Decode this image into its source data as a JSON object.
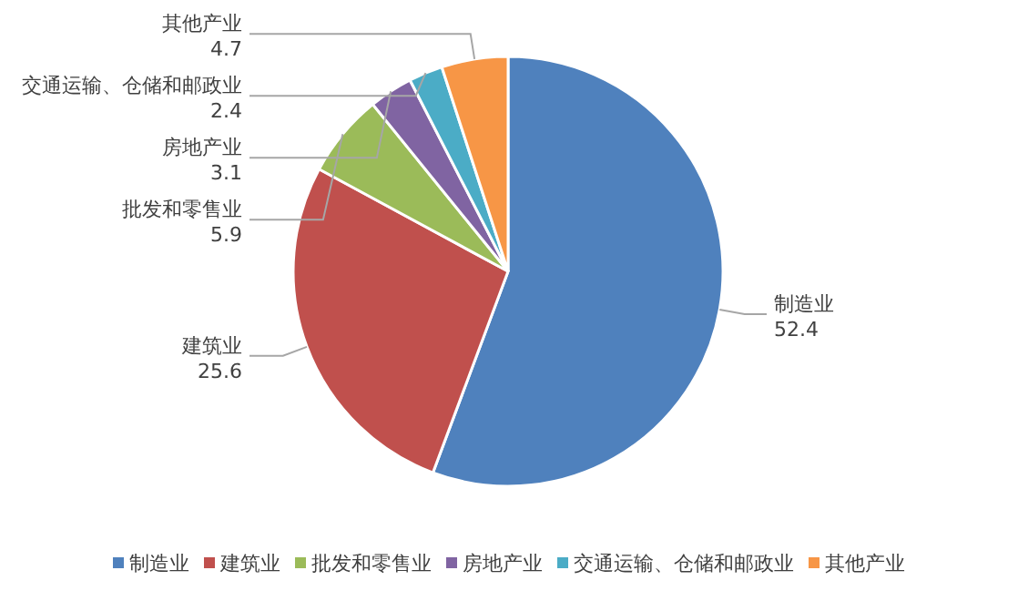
{
  "chart_data": {
    "type": "pie",
    "categories": [
      "制造业",
      "建筑业",
      "批发和零售业",
      "房地产业",
      "交通运输、仓储和邮政业",
      "其他产业"
    ],
    "values": [
      52.4,
      25.6,
      5.9,
      3.1,
      2.4,
      4.7
    ],
    "colors": [
      "#4f81bd",
      "#c0504d",
      "#9bbb59",
      "#8064a2",
      "#4bacc6",
      "#f79646"
    ],
    "data_labels": true,
    "legend": "bottom"
  }
}
